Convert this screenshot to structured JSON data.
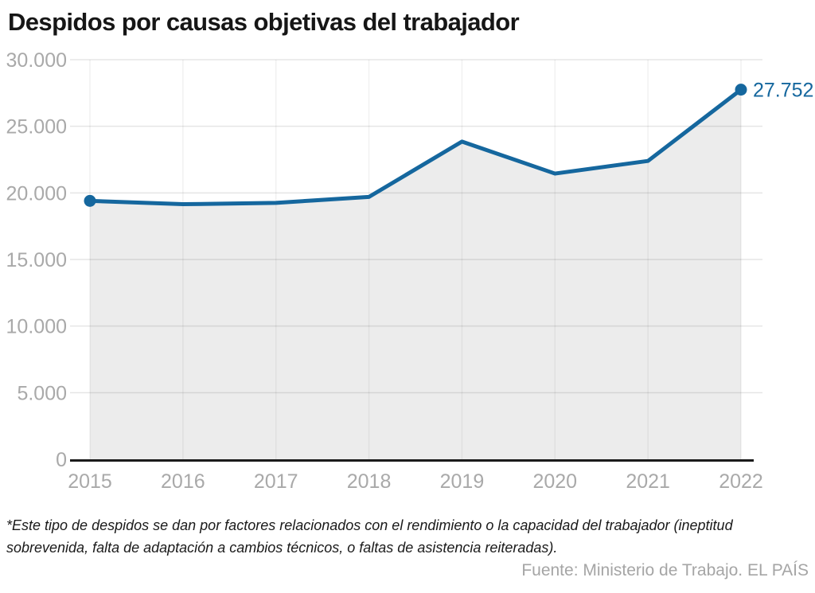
{
  "title": "Despidos por causas objetivas del trabajador",
  "footnote": "*Este tipo de despidos se dan por factores relacionados con el rendimiento o la capacidad del trabajador (ineptitud sobrevenida, falta de adaptación a cambios técnicos, o faltas de asistencia reiteradas).",
  "source": "Fuente: Ministerio de Trabajo. EL PAÍS",
  "colors": {
    "line": "#15679e",
    "area": "#ececec",
    "axis": "#1a1a1a",
    "tick_label": "#a9a9a9",
    "title": "#161616",
    "source": "#a5a5a5"
  },
  "chart_data": {
    "type": "area",
    "title": "Despidos por causas objetivas del trabajador",
    "x": [
      2015,
      2016,
      2017,
      2018,
      2019,
      2020,
      2021,
      2022
    ],
    "x_tick_labels": [
      "2015",
      "2016",
      "2017",
      "2018",
      "2019",
      "2020",
      "2021",
      "2022"
    ],
    "values": [
      19400,
      19150,
      19250,
      19700,
      23850,
      21450,
      22400,
      27752
    ],
    "ylim": [
      0,
      30000
    ],
    "yticks": [
      0,
      5000,
      10000,
      15000,
      20000,
      25000,
      30000
    ],
    "ytick_labels": [
      "0",
      "5.000",
      "10.000",
      "15.000",
      "20.000",
      "25.000",
      "30.000"
    ],
    "grid": true,
    "legend": "none",
    "end_label": "27.752",
    "marker_indices": [
      0,
      7
    ],
    "line_color": "#15679e",
    "area_color": "#ececec",
    "xlabel": "",
    "ylabel": ""
  }
}
